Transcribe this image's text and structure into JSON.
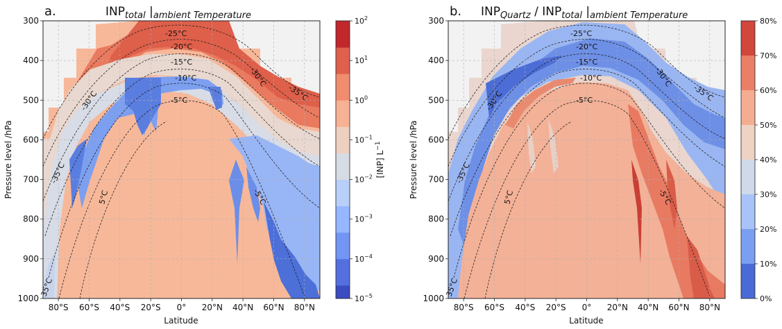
{
  "chart_data": [
    {
      "type": "heatmap",
      "panel_label": "a.",
      "title_main": "INP",
      "title_sub": "total",
      "title_cond": "ambient Temperature",
      "xlabel": "Latitude",
      "ylabel": "Pressure level /hPa",
      "xlim": [
        -90,
        90
      ],
      "ylim": [
        1000,
        300
      ],
      "x_ticks": [
        -80,
        -60,
        -40,
        -20,
        0,
        20,
        40,
        60,
        80
      ],
      "x_tick_labels": [
        "80°S",
        "60°S",
        "40°S",
        "20°S",
        "0°",
        "20°N",
        "40°N",
        "60°N",
        "80°N"
      ],
      "y_ticks": [
        300,
        400,
        500,
        600,
        700,
        800,
        900,
        1000
      ],
      "y_tick_labels": [
        "300",
        "400",
        "500",
        "600",
        "700",
        "800",
        "900",
        "1000"
      ],
      "grid": true,
      "colorbar": {
        "label": "[INP] L",
        "label_exp": "−1",
        "scale": "log",
        "range": [
          1e-05,
          100
        ],
        "tick_values": [
          1e-05,
          0.0001,
          0.001,
          0.01,
          0.1,
          1,
          10,
          100
        ],
        "tick_base": "10",
        "tick_exponents": [
          "−5",
          "−4",
          "−3",
          "−2",
          "−1",
          "0",
          "1",
          "2"
        ]
      },
      "contour_labels": [
        "-25°C",
        "-20°C",
        "-15°C",
        "-10°C",
        "-5°C",
        "-30°C",
        "-35°C",
        "-35°C",
        "-30°C",
        "-5°C",
        "5°C",
        "35°C"
      ],
      "field_description": "Blue (low INP, ~1e-5 to 1e-2) in warm layer below -15°C isotherm; red (high INP, ~1 to 10) in cold upper layer near -25°C to -35°C; white/grey where no data"
    },
    {
      "type": "heatmap",
      "panel_label": "b.",
      "title_main": "INP",
      "title_sub": "Quartz",
      "title_sep": " / INP",
      "title_sub2": "total",
      "title_cond": "ambient Temperature",
      "xlabel": "Latitude",
      "ylabel": "Pressure level /hPa",
      "xlim": [
        -90,
        90
      ],
      "ylim": [
        1000,
        300
      ],
      "x_ticks": [
        -80,
        -60,
        -40,
        -20,
        0,
        20,
        40,
        60,
        80
      ],
      "x_tick_labels": [
        "80°S",
        "60°S",
        "40°S",
        "20°S",
        "0°",
        "20°N",
        "40°N",
        "60°N",
        "80°N"
      ],
      "y_ticks": [
        300,
        400,
        500,
        600,
        700,
        800,
        900,
        1000
      ],
      "y_tick_labels": [
        "300",
        "400",
        "500",
        "600",
        "700",
        "800",
        "900",
        "1000"
      ],
      "grid": true,
      "colorbar": {
        "label": "",
        "scale": "linear",
        "range": [
          0,
          80
        ],
        "tick_values": [
          0,
          10,
          20,
          30,
          40,
          50,
          60,
          70,
          80
        ],
        "tick_labels": [
          "0%",
          "10%",
          "20%",
          "30%",
          "40%",
          "50%",
          "60%",
          "70%",
          "80%"
        ]
      },
      "contour_labels": [
        "-25°C",
        "-20°C",
        "-15°C",
        "-10°C",
        "-5°C",
        "-30°C",
        "-35°C",
        "-35°C",
        "-30°C",
        "-5°C",
        "5°C",
        "35°C"
      ],
      "field_description": "Blue (quartz fraction 10-30%) along the cold band near -25°C to -35°C; red (50-75%) in warmer layers between -10°C and -5°C and in northern mid-latitudes"
    }
  ]
}
